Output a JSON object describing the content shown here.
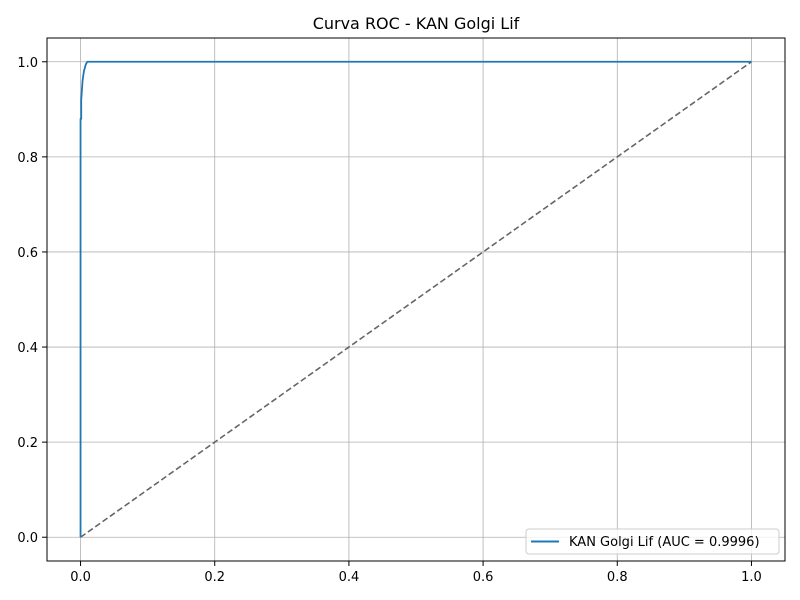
{
  "chart_data": {
    "type": "line",
    "title": "Curva ROC - KAN Golgi Lif",
    "xlabel": "",
    "ylabel": "",
    "xlim": [
      -0.05,
      1.05
    ],
    "ylim": [
      -0.05,
      1.05
    ],
    "x_ticks": [
      0.0,
      0.2,
      0.4,
      0.6,
      0.8,
      1.0
    ],
    "y_ticks": [
      0.0,
      0.2,
      0.4,
      0.6,
      0.8,
      1.0
    ],
    "x_tick_labels": [
      "0.0",
      "0.2",
      "0.4",
      "0.6",
      "0.8",
      "1.0"
    ],
    "y_tick_labels": [
      "0.0",
      "0.2",
      "0.4",
      "0.6",
      "0.8",
      "1.0"
    ],
    "grid": true,
    "legend_position": "lower-right",
    "series": [
      {
        "name": "KAN Golgi Lif (AUC = 0.9996)",
        "color": "#1f77b4",
        "style": "solid",
        "x": [
          0.0,
          0.0,
          0.0,
          0.001,
          0.001,
          0.002,
          0.003,
          0.004,
          0.005,
          0.006,
          0.007,
          0.008,
          0.01,
          1.0
        ],
        "y": [
          0.0,
          0.5,
          0.88,
          0.88,
          0.92,
          0.94,
          0.96,
          0.97,
          0.98,
          0.985,
          0.99,
          0.995,
          1.0,
          1.0
        ]
      },
      {
        "name": "",
        "color": "#666666",
        "style": "dashed",
        "x": [
          0.0,
          1.0
        ],
        "y": [
          0.0,
          1.0
        ]
      }
    ]
  }
}
